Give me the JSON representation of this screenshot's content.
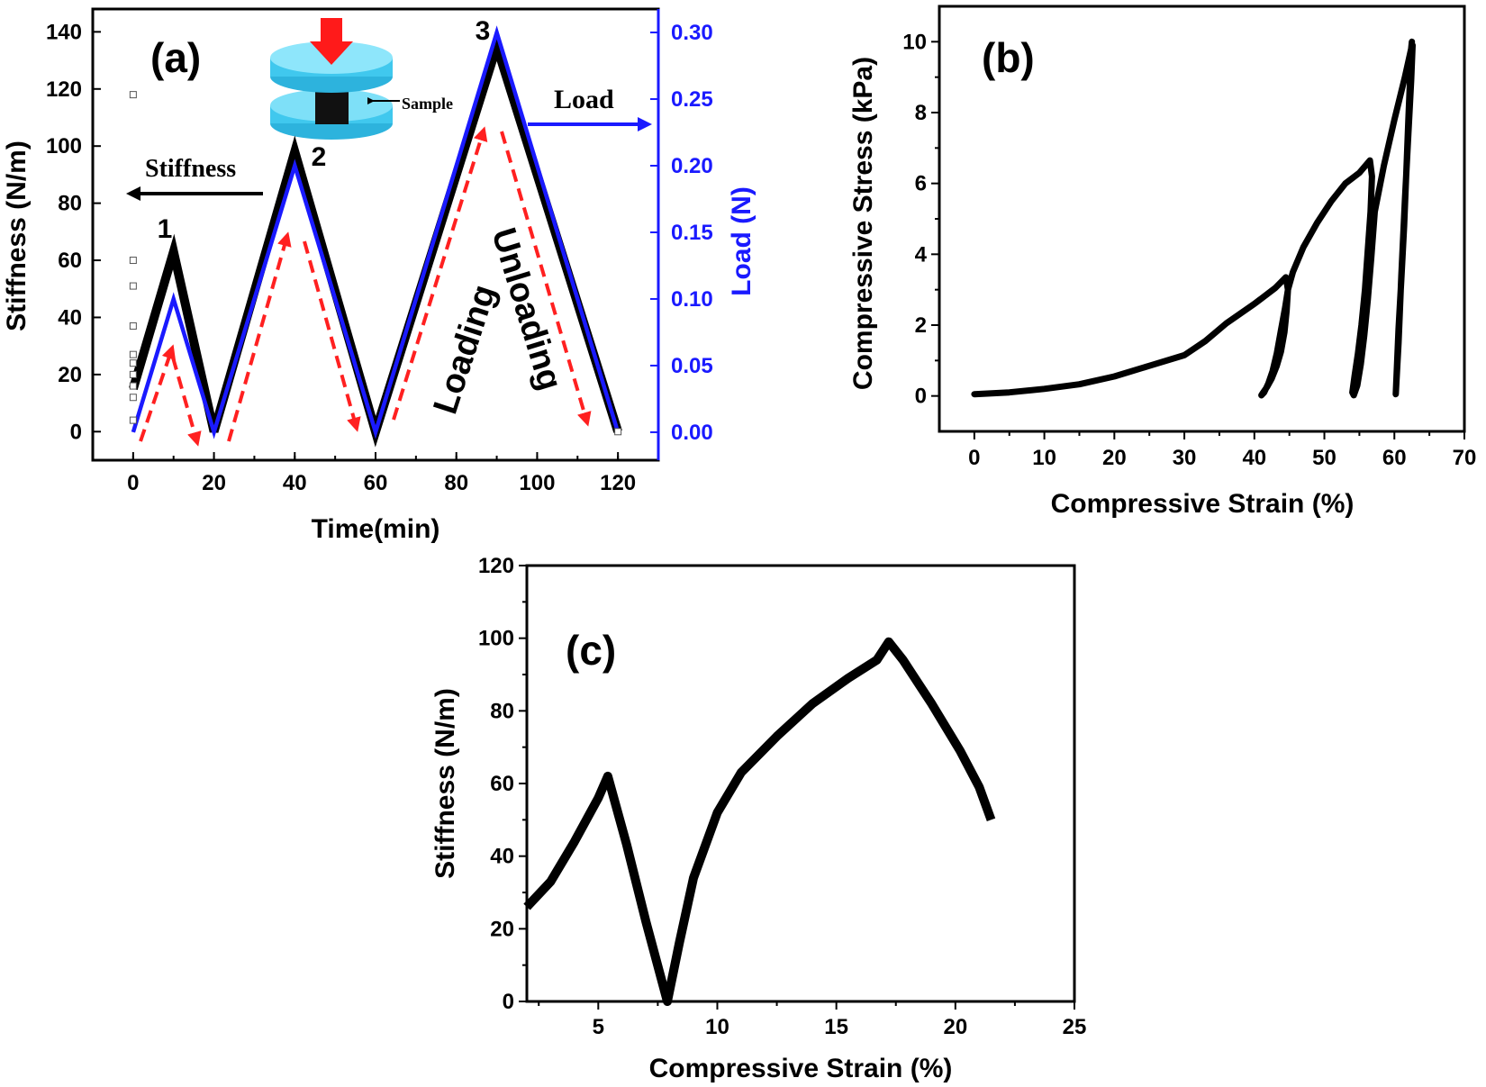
{
  "colors": {
    "stiffness": "#000000",
    "load": "#1a1aff",
    "arrows": "#ff2020",
    "sample_plate": "#40c8ee",
    "press_arrow": "#ff1a1a"
  },
  "chart_data": [
    {
      "id": "a",
      "type": "line",
      "panel_label": "(a)",
      "xlabel": "Time(min)",
      "ylabel": "Stiffness (N/m)",
      "y2label": "Load (N)",
      "xlim": [
        -10,
        130
      ],
      "ylim": [
        -10,
        148
      ],
      "y2lim": [
        -0.021,
        0.3176
      ],
      "xticks": [
        0,
        20,
        40,
        60,
        80,
        100,
        120
      ],
      "yticks": [
        0,
        20,
        40,
        60,
        80,
        100,
        120,
        140
      ],
      "y2ticks": [
        "0.00",
        "0.05",
        "0.10",
        "0.15",
        "0.20",
        "0.25",
        "0.30"
      ],
      "series": [
        {
          "name": "Stiffness",
          "axis": "left",
          "x": [
            0,
            10,
            20,
            40,
            60,
            90,
            120
          ],
          "y": [
            15,
            63,
            0,
            98,
            0,
            135,
            0
          ]
        },
        {
          "name": "Load",
          "axis": "right",
          "x": [
            0,
            10,
            20,
            40,
            60,
            90,
            120
          ],
          "y": [
            0,
            0.1,
            0,
            0.2,
            0,
            0.3,
            0
          ]
        },
        {
          "name": "markers",
          "axis": "left",
          "x": [
            0,
            0,
            0,
            0,
            0,
            0,
            0,
            0,
            0,
            0,
            120
          ],
          "y": [
            118,
            60,
            51,
            37,
            27,
            24,
            20,
            16,
            12,
            4,
            0
          ]
        }
      ],
      "peak_labels": [
        "1",
        "2",
        "3"
      ],
      "annotations": {
        "stiffness": "Stiffness",
        "load": "Load",
        "loading": "Loading",
        "unloading": "Unloading",
        "sample": "Sample"
      }
    },
    {
      "id": "b",
      "type": "line",
      "panel_label": "(b)",
      "xlabel": "Compressive Strain (%)",
      "ylabel": "Compressive Stress (kPa)",
      "xlim": [
        -5,
        70
      ],
      "ylim": [
        -1,
        11
      ],
      "xticks": [
        0,
        10,
        20,
        30,
        40,
        50,
        60,
        70
      ],
      "yticks": [
        0,
        2,
        4,
        6,
        8,
        10
      ],
      "series": [
        {
          "name": "cycles",
          "x": [
            0,
            5,
            10,
            15,
            20,
            25,
            30,
            33,
            36,
            40,
            43,
            44.5,
            44.8,
            44.6,
            44.3,
            43.8,
            43.2,
            42.5,
            41.8,
            41.2,
            41.0,
            41.4,
            42.0,
            42.6,
            43.2,
            43.8,
            44.4,
            44.8,
            45.5,
            47,
            49,
            51,
            53,
            55,
            56.5,
            56.8,
            56.6,
            56.2,
            55.8,
            55.3,
            54.8,
            54.3,
            54.0,
            54.2,
            54.7,
            55.2,
            55.7,
            56.2,
            56.7,
            57.2,
            58.5,
            60,
            61.5,
            62.4,
            62.5,
            62.3,
            62.0,
            61.7,
            61.4,
            61.0,
            60.6,
            60.2,
            60.6,
            61.0,
            61.5,
            62.0,
            62.4,
            62.6
          ],
          "y": [
            0.05,
            0.1,
            0.2,
            0.33,
            0.55,
            0.85,
            1.15,
            1.55,
            2.05,
            2.6,
            3.05,
            3.35,
            3.0,
            2.4,
            1.8,
            1.25,
            0.85,
            0.5,
            0.25,
            0.08,
            0.02,
            0.1,
            0.35,
            0.7,
            1.2,
            1.85,
            2.5,
            3.0,
            3.5,
            4.2,
            4.9,
            5.5,
            6.0,
            6.3,
            6.65,
            6.2,
            5.2,
            4.1,
            3.0,
            2.0,
            1.2,
            0.55,
            0.1,
            0.02,
            0.3,
            0.9,
            1.7,
            2.7,
            3.9,
            5.2,
            6.5,
            7.8,
            9.0,
            9.8,
            10.0,
            9.2,
            7.8,
            6.3,
            4.8,
            3.3,
            1.9,
            0.05,
            1.5,
            3.4,
            5.5,
            7.4,
            8.9,
            9.9
          ]
        }
      ]
    },
    {
      "id": "c",
      "type": "line",
      "panel_label": "(c)",
      "xlabel": "Compressive Strain (%)",
      "ylabel": "Stiffness (N/m)",
      "xlim": [
        2,
        25
      ],
      "ylim": [
        0,
        120
      ],
      "xticks": [
        5,
        10,
        15,
        20,
        25
      ],
      "yticks": [
        0,
        20,
        40,
        60,
        80,
        100,
        120
      ],
      "series": [
        {
          "name": "stiffness",
          "x": [
            2,
            3,
            4,
            5,
            5.4,
            6.2,
            7.0,
            7.9,
            8.4,
            9.0,
            10.0,
            11.0,
            12.5,
            14.0,
            15.5,
            16.7,
            17.2,
            17.8,
            19.0,
            20.2,
            21.0,
            21.5
          ],
          "y": [
            26,
            33,
            44,
            56,
            62,
            43,
            22,
            0,
            16,
            34,
            52,
            63,
            73,
            82,
            89,
            94,
            99,
            94,
            82,
            69,
            59,
            50
          ]
        }
      ]
    }
  ]
}
